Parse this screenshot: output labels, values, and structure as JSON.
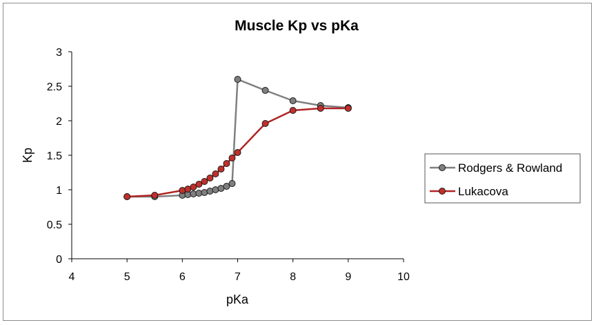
{
  "chart_data": {
    "type": "line",
    "title": "Muscle Kp vs pKa",
    "xlabel": "pKa",
    "ylabel": "Kp",
    "xlim": [
      4,
      10
    ],
    "ylim": [
      0,
      3
    ],
    "xticks": [
      4,
      5,
      6,
      7,
      8,
      9,
      10
    ],
    "yticks": [
      0,
      0.5,
      1,
      1.5,
      2,
      2.5,
      3
    ],
    "grid": false,
    "legend_position": "right",
    "series": [
      {
        "name": "Rodgers & Rowland",
        "color": "#7f7f7f",
        "marker_fill": "#7f7f7f",
        "x": [
          5,
          5.5,
          6,
          6.1,
          6.2,
          6.3,
          6.4,
          6.5,
          6.6,
          6.7,
          6.8,
          6.9,
          7,
          7.5,
          8,
          8.5,
          9
        ],
        "y": [
          0.9,
          0.9,
          0.92,
          0.93,
          0.94,
          0.95,
          0.96,
          0.98,
          1.0,
          1.02,
          1.05,
          1.09,
          2.6,
          2.44,
          2.29,
          2.22,
          2.19
        ]
      },
      {
        "name": "Lukacova",
        "color": "#b02323",
        "marker_fill": "#c0302b",
        "x": [
          5,
          5.5,
          6,
          6.1,
          6.2,
          6.3,
          6.4,
          6.5,
          6.6,
          6.7,
          6.8,
          6.9,
          7,
          7.5,
          8,
          8.5,
          9
        ],
        "y": [
          0.9,
          0.92,
          0.99,
          1.01,
          1.04,
          1.08,
          1.12,
          1.17,
          1.23,
          1.3,
          1.38,
          1.46,
          1.54,
          1.96,
          2.15,
          2.18,
          2.18
        ]
      }
    ]
  }
}
